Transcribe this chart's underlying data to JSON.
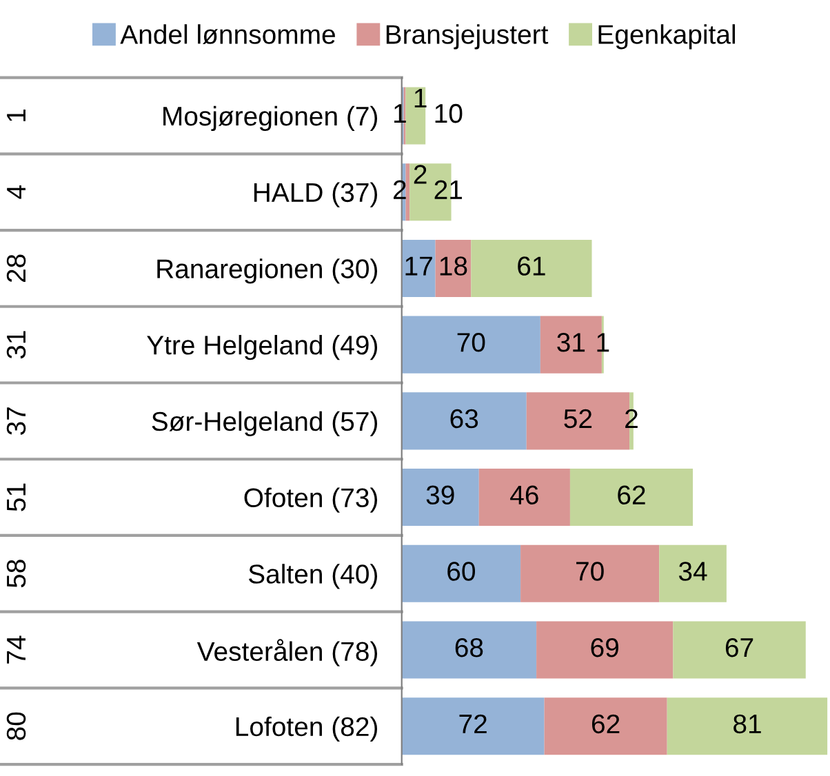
{
  "chart_data": {
    "type": "bar",
    "orientation": "horizontal",
    "stacked": true,
    "data_labels": true,
    "legend": "top",
    "grid": false,
    "categories": [
      "Mosjøregionen (7)",
      "HALD (37)",
      "Ranaregionen (30)",
      "Ytre Helgeland (49)",
      "Sør-Helgeland (57)",
      "Ofoten (73)",
      "Salten (40)",
      "Vesterålen (78)",
      "Lofoten (82)"
    ],
    "annotations": [
      "1",
      "4",
      "28",
      "31",
      "37",
      "51",
      "58",
      "74",
      "80"
    ],
    "series": [
      {
        "name": "Andel lønnsomme",
        "color": "#95b3d7",
        "values": [
          1,
          2,
          17,
          70,
          63,
          39,
          60,
          68,
          72
        ]
      },
      {
        "name": "Bransjejustert",
        "color": "#d99694",
        "values": [
          1,
          2,
          18,
          31,
          52,
          46,
          70,
          69,
          62
        ]
      },
      {
        "name": "Egenkapital",
        "color": "#c3d69b",
        "values": [
          10,
          21,
          61,
          1,
          2,
          62,
          34,
          67,
          81
        ]
      }
    ]
  }
}
